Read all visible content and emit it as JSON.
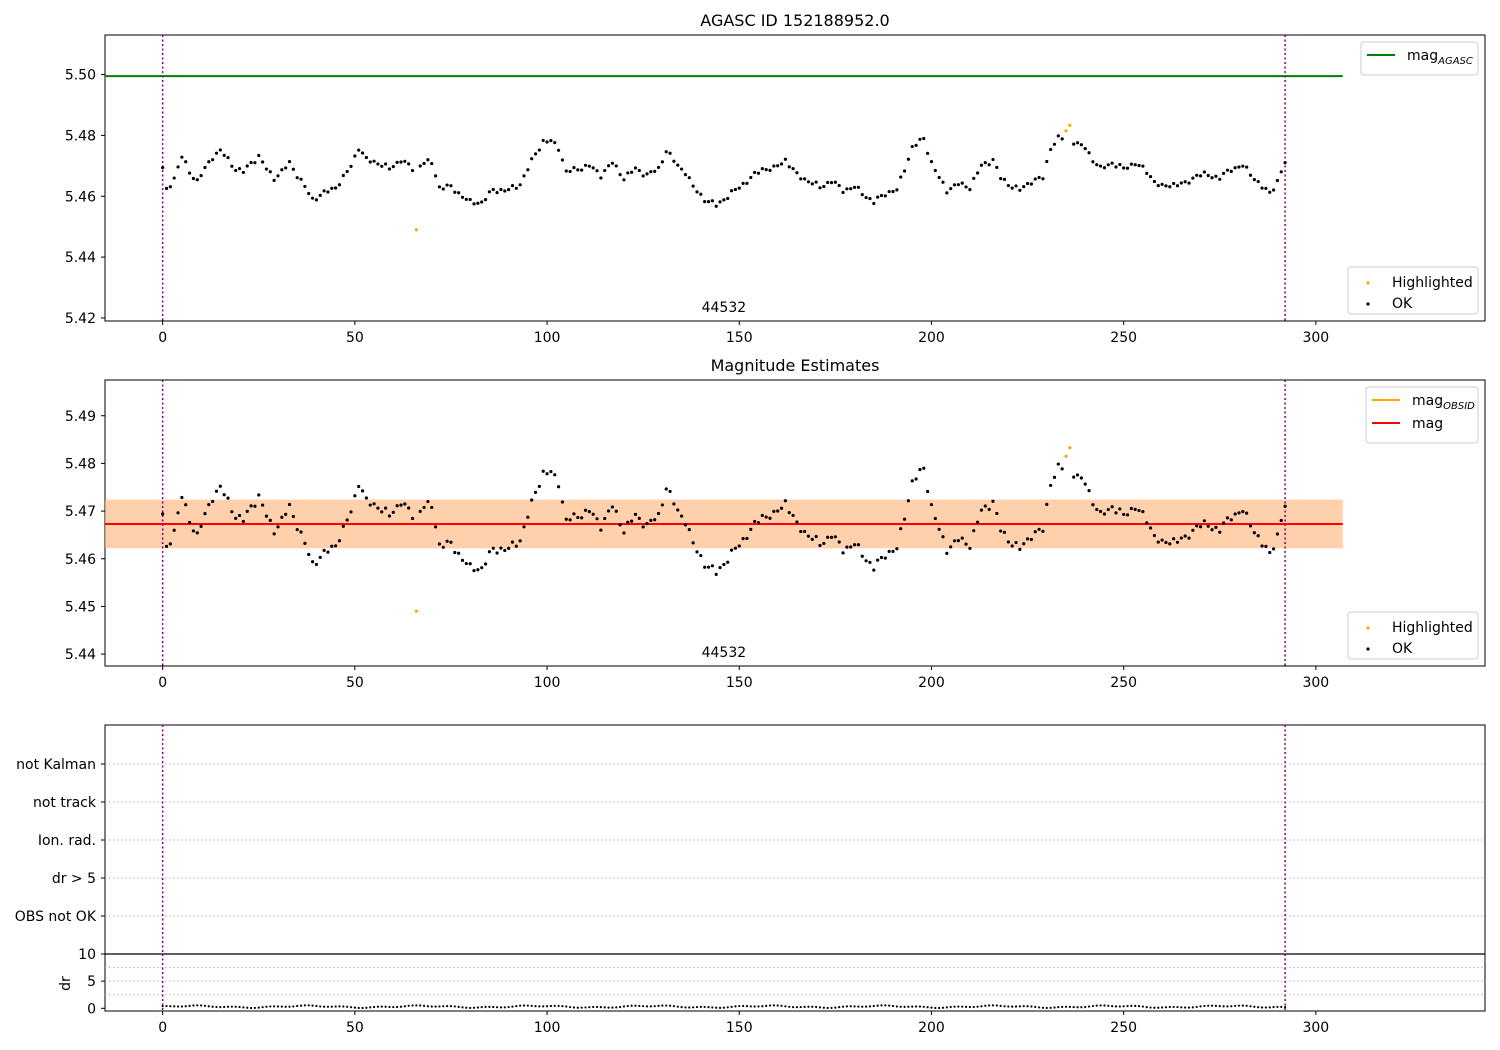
{
  "chart_data": [
    {
      "type": "scatter",
      "title": "AGASC ID 152188952.0",
      "xlim": [
        -15,
        344
      ],
      "ylim": [
        5.419,
        5.513
      ],
      "xticks": [
        0,
        50,
        100,
        150,
        200,
        250,
        300
      ],
      "yticks": [
        5.42,
        5.44,
        5.46,
        5.48,
        5.5
      ],
      "ytick_labels": [
        "5.42",
        "5.44",
        "5.46",
        "5.48",
        "5.50"
      ],
      "vlines": [
        0,
        292
      ],
      "obsid_label": {
        "text": "44532",
        "x": 146
      },
      "lines": [
        {
          "name": "mag",
          "sub": "AGASC",
          "color": "#008000",
          "y": 5.4995,
          "x_range": [
            -15,
            307
          ]
        }
      ],
      "legend_lines": [
        {
          "name": "mag",
          "sub": "AGASC",
          "color": "#008000"
        }
      ],
      "legend_points": [
        {
          "name": "Highlighted",
          "color": "#ffa500"
        },
        {
          "name": "OK",
          "color": "#000000"
        }
      ],
      "grid": false
    },
    {
      "type": "scatter",
      "title": "Magnitude Estimates",
      "xlim": [
        -15,
        344
      ],
      "ylim": [
        5.4375,
        5.4975
      ],
      "xticks": [
        0,
        50,
        100,
        150,
        200,
        250,
        300
      ],
      "yticks": [
        5.44,
        5.45,
        5.46,
        5.47,
        5.48,
        5.49
      ],
      "ytick_labels": [
        "5.44",
        "5.45",
        "5.46",
        "5.47",
        "5.48",
        "5.49"
      ],
      "vlines": [
        0,
        292
      ],
      "obsid_label": {
        "text": "44532",
        "x": 146
      },
      "bands": [
        {
          "color": "#ffc0cb",
          "opacity": 0.5,
          "y": [
            5.4622,
            5.4724
          ],
          "x_range": [
            -15,
            307
          ]
        },
        {
          "color": "#ffa500",
          "opacity": 0.25,
          "y": [
            5.4622,
            5.4724
          ],
          "x_range": [
            -15,
            307
          ]
        }
      ],
      "lines": [
        {
          "name": "mag",
          "color": "#ff0000",
          "y": 5.4673,
          "x_range": [
            -15,
            307
          ]
        }
      ],
      "legend_lines": [
        {
          "name": "mag",
          "sub": "OBSID",
          "color": "#ffa500"
        },
        {
          "name": "mag",
          "color": "#ff0000"
        }
      ],
      "legend_points": [
        {
          "name": "Highlighted",
          "color": "#ffa500"
        },
        {
          "name": "OK",
          "color": "#000000"
        }
      ],
      "grid": false
    },
    {
      "type": "scatter",
      "title": "",
      "xlim": [
        -15,
        344
      ],
      "flag_labels": [
        "not Kalman",
        "not track",
        "Ion. rad.",
        "dr > 5",
        "OBS not OK"
      ],
      "vlines": [
        0,
        292
      ],
      "grid": true
    },
    {
      "type": "line",
      "title": "",
      "ylabel": "dr",
      "xlim": [
        -15,
        344
      ],
      "ylim": [
        -0.5,
        10
      ],
      "xticks": [
        0,
        50,
        100,
        150,
        200,
        250,
        300
      ],
      "yticks": [
        0,
        5,
        10
      ],
      "ytick_labels": [
        "0",
        "5",
        "10"
      ],
      "hlines": [
        10
      ],
      "vlines": [
        0,
        292
      ],
      "grid": true
    }
  ],
  "series": {
    "highlighted": [
      {
        "x": 66,
        "y": 5.449
      },
      {
        "x": 235,
        "y": 5.4815
      },
      {
        "x": 236,
        "y": 5.4833
      }
    ],
    "anchors": [
      [
        0,
        5.469
      ],
      [
        1,
        5.462
      ],
      [
        3,
        5.466
      ],
      [
        5,
        5.473
      ],
      [
        7,
        5.468
      ],
      [
        9,
        5.465
      ],
      [
        11,
        5.469
      ],
      [
        13,
        5.473
      ],
      [
        15,
        5.475
      ],
      [
        17,
        5.472
      ],
      [
        19,
        5.469
      ],
      [
        21,
        5.468
      ],
      [
        23,
        5.471
      ],
      [
        25,
        5.473
      ],
      [
        27,
        5.469
      ],
      [
        29,
        5.466
      ],
      [
        31,
        5.468
      ],
      [
        33,
        5.471
      ],
      [
        35,
        5.467
      ],
      [
        37,
        5.463
      ],
      [
        39,
        5.459
      ],
      [
        42,
        5.461
      ],
      [
        45,
        5.463
      ],
      [
        47,
        5.466
      ],
      [
        49,
        5.47
      ],
      [
        51,
        5.476
      ],
      [
        53,
        5.472
      ],
      [
        56,
        5.471
      ],
      [
        59,
        5.469
      ],
      [
        62,
        5.472
      ],
      [
        65,
        5.469
      ],
      [
        68,
        5.471
      ],
      [
        70,
        5.471
      ],
      [
        72,
        5.463
      ],
      [
        75,
        5.463
      ],
      [
        78,
        5.46
      ],
      [
        80,
        5.458
      ],
      [
        83,
        5.458
      ],
      [
        86,
        5.462
      ],
      [
        90,
        5.462
      ],
      [
        93,
        5.464
      ],
      [
        95,
        5.469
      ],
      [
        97,
        5.474
      ],
      [
        99,
        5.478
      ],
      [
        101,
        5.478
      ],
      [
        103,
        5.476
      ],
      [
        105,
        5.468
      ],
      [
        108,
        5.469
      ],
      [
        111,
        5.47
      ],
      [
        114,
        5.467
      ],
      [
        117,
        5.471
      ],
      [
        120,
        5.466
      ],
      [
        123,
        5.469
      ],
      [
        126,
        5.467
      ],
      [
        129,
        5.469
      ],
      [
        131,
        5.475
      ],
      [
        134,
        5.47
      ],
      [
        136,
        5.468
      ],
      [
        138,
        5.463
      ],
      [
        141,
        5.459
      ],
      [
        144,
        5.457
      ],
      [
        147,
        5.46
      ],
      [
        150,
        5.463
      ],
      [
        153,
        5.466
      ],
      [
        156,
        5.469
      ],
      [
        159,
        5.469
      ],
      [
        162,
        5.472
      ],
      [
        165,
        5.467
      ],
      [
        168,
        5.465
      ],
      [
        171,
        5.463
      ],
      [
        174,
        5.465
      ],
      [
        177,
        5.462
      ],
      [
        180,
        5.463
      ],
      [
        183,
        5.46
      ],
      [
        185,
        5.458
      ],
      [
        188,
        5.461
      ],
      [
        191,
        5.462
      ],
      [
        193,
        5.469
      ],
      [
        195,
        5.476
      ],
      [
        198,
        5.479
      ],
      [
        200,
        5.471
      ],
      [
        202,
        5.466
      ],
      [
        204,
        5.462
      ],
      [
        207,
        5.464
      ],
      [
        210,
        5.463
      ],
      [
        213,
        5.47
      ],
      [
        216,
        5.472
      ],
      [
        218,
        5.466
      ],
      [
        220,
        5.464
      ],
      [
        223,
        5.462
      ],
      [
        226,
        5.465
      ],
      [
        229,
        5.466
      ],
      [
        231,
        5.476
      ],
      [
        233,
        5.479
      ],
      [
        236,
        5.479
      ],
      [
        238,
        5.477
      ],
      [
        240,
        5.476
      ],
      [
        242,
        5.472
      ],
      [
        244,
        5.469
      ],
      [
        247,
        5.471
      ],
      [
        250,
        5.469
      ],
      [
        253,
        5.471
      ],
      [
        256,
        5.468
      ],
      [
        258,
        5.465
      ],
      [
        260,
        5.463
      ],
      [
        263,
        5.464
      ],
      [
        266,
        5.464
      ],
      [
        269,
        5.467
      ],
      [
        272,
        5.467
      ],
      [
        275,
        5.466
      ],
      [
        278,
        5.469
      ],
      [
        281,
        5.47
      ],
      [
        284,
        5.466
      ],
      [
        286,
        5.463
      ],
      [
        288,
        5.461
      ],
      [
        290,
        5.465
      ],
      [
        292,
        5.471
      ]
    ]
  }
}
